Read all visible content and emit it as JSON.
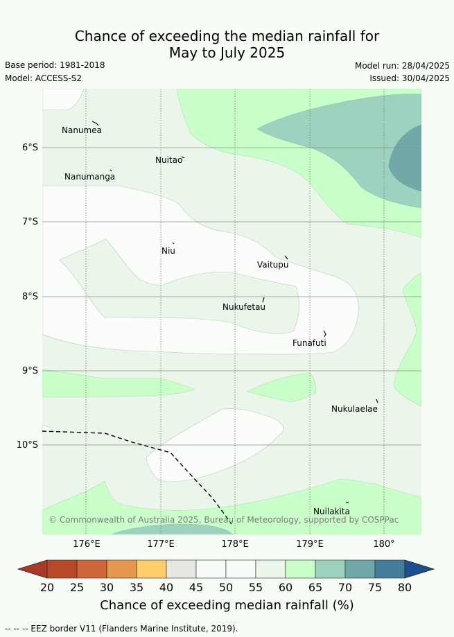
{
  "title": {
    "line1": "Chance of exceeding the median rainfall for",
    "line2": "May to July 2025"
  },
  "meta": {
    "base_period": "Base period: 1981-2018",
    "model": "Model: ACCESS-S2",
    "model_run": "Model run: 28/04/2025",
    "issued": "Issued: 30/04/2025"
  },
  "axes": {
    "lat_labels": [
      "6°S",
      "7°S",
      "8°S",
      "9°S",
      "10°S"
    ],
    "lon_labels": [
      "176°E",
      "177°E",
      "178°E",
      "179°E",
      "180°"
    ]
  },
  "islands": [
    {
      "name": "Nanumea"
    },
    {
      "name": "Nuitao"
    },
    {
      "name": "Nanumanga"
    },
    {
      "name": "Niu"
    },
    {
      "name": "Vaitupu"
    },
    {
      "name": "Nukufetau"
    },
    {
      "name": "Funafuti"
    },
    {
      "name": "Nukulaelae"
    },
    {
      "name": "Nuilakita"
    }
  ],
  "credit": "© Commonwealth of Australia 2025, Bureau of Meteorology, supported by COSPPac",
  "colorbar": {
    "ticks": [
      "20",
      "25",
      "30",
      "35",
      "40",
      "45",
      "50",
      "55",
      "60",
      "65",
      "70",
      "75",
      "80"
    ],
    "colors": [
      "#a83a26",
      "#b84a2a",
      "#d0663a",
      "#e5984d",
      "#fece6a",
      "#e7e7e2",
      "#f7fbf7",
      "#f8fcf8",
      "#ebf6ea",
      "#c9ffc9",
      "#9dd3be",
      "#70a9a8",
      "#437f9c",
      "#1c4f8c"
    ],
    "title": "Chance of exceeding median rainfall (%)"
  },
  "legend": {
    "eez": "--  --  -- EEZ border V11 (Flanders Marine Institute, 2019)."
  }
}
